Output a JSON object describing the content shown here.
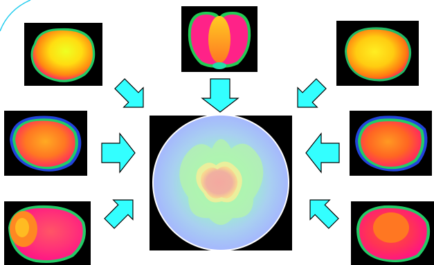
{
  "diagram": {
    "type": "projections-to-polar-map",
    "arrow_color": "#33FFFF",
    "arrow_stroke": "#000000",
    "background_color": "#FFFFFF",
    "accent_arc_color": "#22CCEE",
    "panels": [
      {
        "name": "projection-top-left",
        "palette": "yellow-core"
      },
      {
        "name": "projection-top-center",
        "palette": "red-magenta-lobes"
      },
      {
        "name": "projection-top-right",
        "palette": "yellow-core"
      },
      {
        "name": "projection-middle-left",
        "palette": "orange-red"
      },
      {
        "name": "projection-middle-right",
        "palette": "orange-red"
      },
      {
        "name": "projection-bottom-left",
        "palette": "red-magenta"
      },
      {
        "name": "projection-bottom-right",
        "palette": "red-magenta"
      }
    ],
    "center_map": {
      "name": "polar-map",
      "palette": "pastel-blue-green-salmon"
    }
  }
}
